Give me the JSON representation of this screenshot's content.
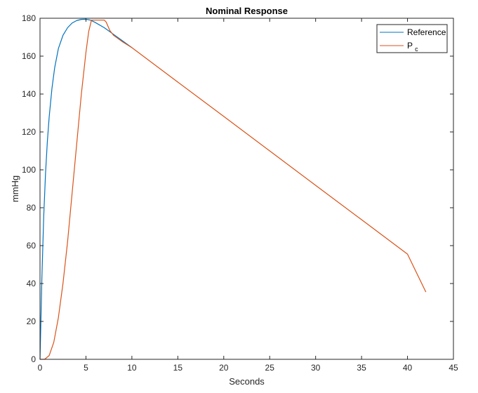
{
  "chart_data": {
    "type": "line",
    "title": "Nominal Response",
    "xlabel": "Seconds",
    "ylabel": "mmHg",
    "xlim": [
      0,
      45
    ],
    "ylim": [
      0,
      180
    ],
    "xticks": [
      0,
      5,
      10,
      15,
      20,
      25,
      30,
      35,
      40,
      45
    ],
    "yticks": [
      0,
      20,
      40,
      60,
      80,
      100,
      120,
      140,
      160,
      180
    ],
    "grid": false,
    "legend_position": "top-right",
    "series": [
      {
        "name": "Reference",
        "color": "#0072bd",
        "x": [
          0,
          0.2,
          0.4,
          0.6,
          0.8,
          1.0,
          1.3,
          1.6,
          2.0,
          2.5,
          3.0,
          3.5,
          4.0,
          4.5,
          5.0,
          5.5,
          6.0,
          7.0,
          8.0,
          9.0,
          10.0
        ],
        "y": [
          0,
          42,
          75,
          98,
          115,
          128,
          143,
          154,
          164,
          171,
          175,
          177.5,
          178.8,
          179.4,
          179.5,
          179,
          177.8,
          175,
          171.5,
          168,
          164.5
        ]
      },
      {
        "name": "P_c",
        "color": "#d95319",
        "x": [
          0,
          0.5,
          1.0,
          1.5,
          2.0,
          2.5,
          3.0,
          3.5,
          4.0,
          4.5,
          5.0,
          5.3,
          5.6,
          6.0,
          7.0,
          7.2,
          7.6,
          8.0,
          9.0,
          10.0,
          15.0,
          20.0,
          25.0,
          30.0,
          35.0,
          40.0,
          42.0
        ],
        "y": [
          0,
          0,
          2,
          9,
          22,
          40,
          62,
          88,
          114,
          140,
          162,
          173,
          179,
          179,
          179,
          178,
          173.5,
          171,
          167.5,
          164.5,
          146.3,
          128.2,
          110,
          91.8,
          73.7,
          55.5,
          35.5
        ]
      }
    ]
  },
  "legend": {
    "items": [
      {
        "label": "Reference",
        "sub": ""
      },
      {
        "label": "P",
        "sub": "c"
      }
    ]
  }
}
